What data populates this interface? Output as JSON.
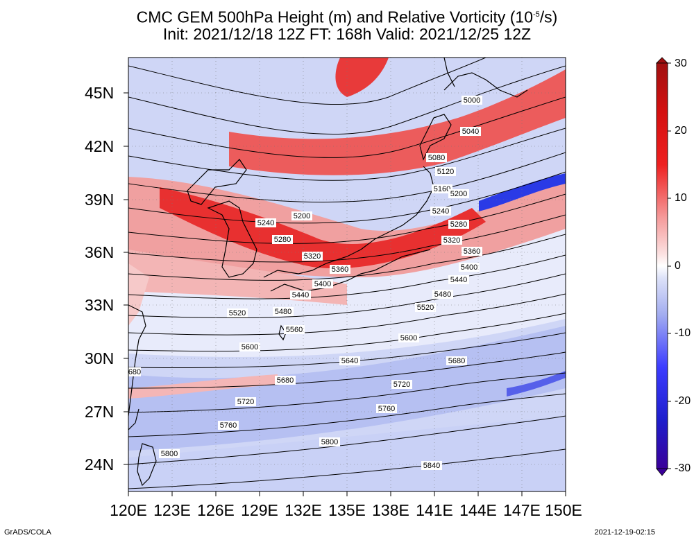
{
  "title": {
    "line1": "CMC GEM 500hPa Height (m) and Relative Vorticity (10",
    "line1_sup": "-5",
    "line1_end": "/s)",
    "line2": "Init: 2021/12/18 12Z  FT: 168h  Valid: 2021/12/25 12Z"
  },
  "axes": {
    "lat_labels": [
      "45N",
      "42N",
      "39N",
      "36N",
      "33N",
      "30N",
      "27N",
      "24N"
    ],
    "lon_labels": [
      "120E",
      "123E",
      "126E",
      "129E",
      "132E",
      "135E",
      "138E",
      "141E",
      "144E",
      "147E",
      "150E"
    ]
  },
  "colorbar": {
    "ticks": [
      "30",
      "20",
      "10",
      "0",
      "-10",
      "-20",
      "-30"
    ],
    "colors": [
      "#3a0099",
      "#1e1ecc",
      "#3c3cff",
      "#6e78f0",
      "#a3adf0",
      "#d2d8f7",
      "#ffffff",
      "#f7d0d0",
      "#f59999",
      "#f06060",
      "#ee2020",
      "#d41010",
      "#a01010"
    ]
  },
  "contours": {
    "left_labels": [
      "5200",
      "5240",
      "5280",
      "5320",
      "5360",
      "5400",
      "5440",
      "5480",
      "5520",
      "5560",
      "5600",
      "5640",
      "5680",
      "5720",
      "5760",
      "5800",
      "5840"
    ],
    "right_labels": [
      "5000",
      "5040",
      "5080",
      "5120",
      "5160",
      "5200",
      "5240",
      "5280",
      "5320",
      "5360",
      "5400",
      "5440",
      "5480",
      "5520",
      "5600",
      "5680",
      "5720",
      "5760"
    ],
    "edge_label": "680"
  },
  "footer": {
    "left": "GrADS/COLA",
    "right": "2021-12-19-02:15"
  }
}
